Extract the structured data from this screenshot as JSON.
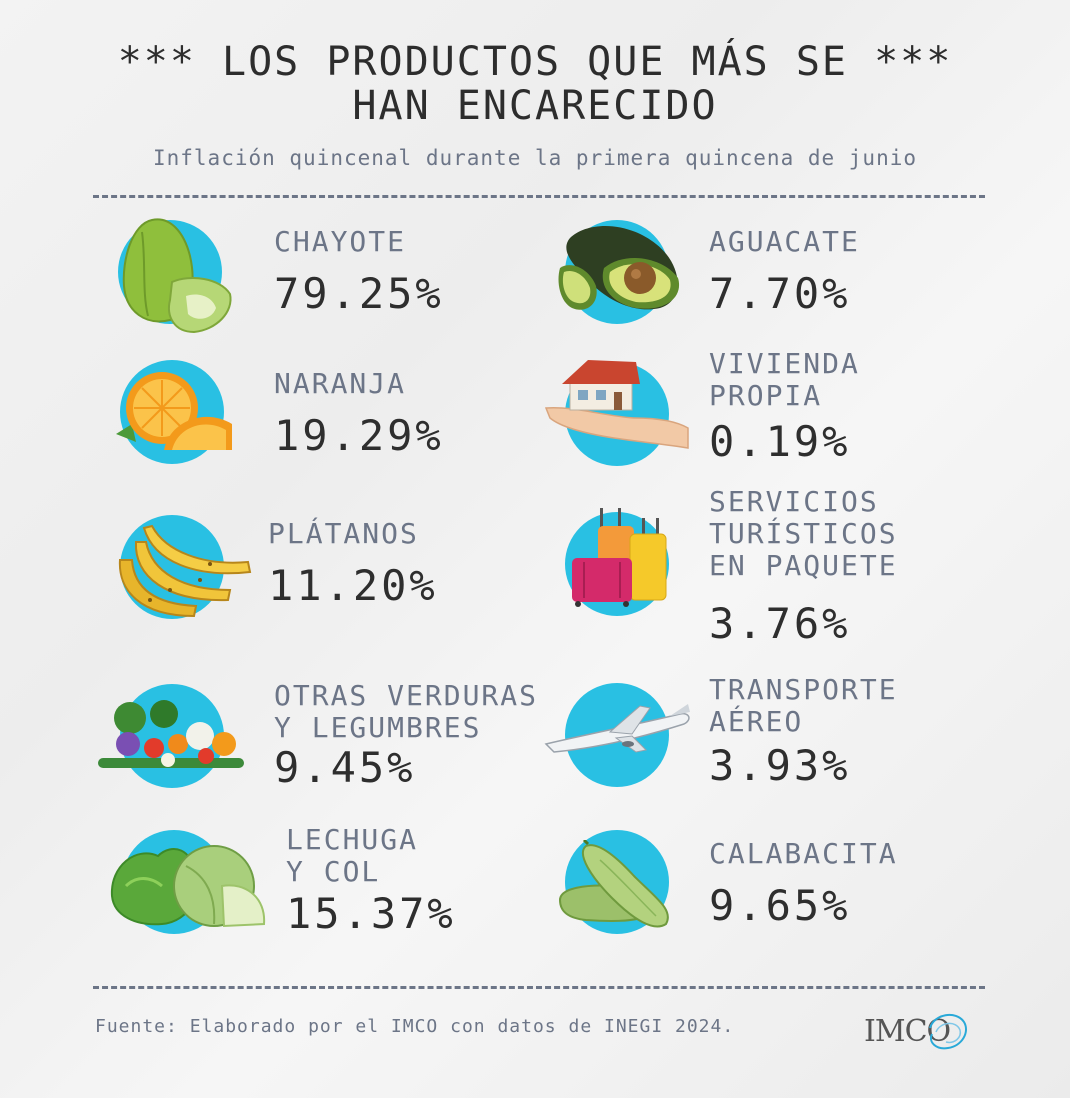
{
  "title": {
    "line1": "*** LOS PRODUCTOS QUE MÁS SE ***",
    "line2": "HAN ENCARECIDO"
  },
  "subtitle": "Inflación quincenal durante la primera quincena de junio",
  "items": [
    {
      "label": "CHAYOTE",
      "value": "79.25%",
      "icon": "chayote-icon"
    },
    {
      "label": "NARANJA",
      "value": "19.29%",
      "icon": "orange-icon"
    },
    {
      "label": "PLÁTANOS",
      "value": "11.20%",
      "icon": "banana-icon"
    },
    {
      "label": "OTRAS VERDURAS\nY LEGUMBRES",
      "value": "9.45%",
      "icon": "vegetables-icon"
    },
    {
      "label": "LECHUGA\nY COL",
      "value": "15.37%",
      "icon": "lettuce-icon"
    },
    {
      "label": "AGUACATE",
      "value": "7.70%",
      "icon": "avocado-icon"
    },
    {
      "label": "VIVIENDA\nPROPIA",
      "value": "0.19%",
      "icon": "house-icon"
    },
    {
      "label": "SERVICIOS\nTURÍSTICOS\nEN PAQUETE",
      "value": "3.76%",
      "icon": "luggage-icon"
    },
    {
      "label": "TRANSPORTE\nAÉREO",
      "value": "3.93%",
      "icon": "airplane-icon"
    },
    {
      "label": "CALABACITA",
      "value": "9.65%",
      "icon": "zucchini-icon"
    }
  ],
  "source": "Fuente: Elaborado por el IMCO con datos de INEGI 2024.",
  "logo": "IMCO",
  "colors": {
    "accent": "#29c0e3",
    "label": "#6c7587",
    "value": "#2e2e2e"
  }
}
